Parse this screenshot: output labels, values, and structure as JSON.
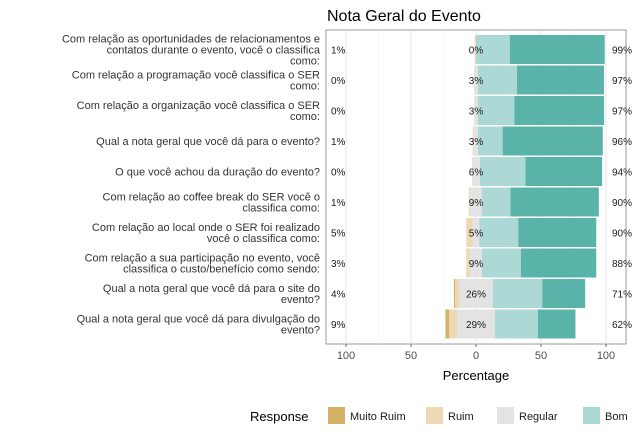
{
  "chart_data": {
    "type": "bar",
    "subtype": "diverging-stacked-likert",
    "title": "Nota Geral do Evento",
    "xlabel": "Percentage",
    "xlim": [
      -100,
      100
    ],
    "xticks": [
      -100,
      -50,
      0,
      50,
      100
    ],
    "xtick_labels": [
      "100",
      "50",
      "0",
      "50",
      "100"
    ],
    "grid": true,
    "legend": {
      "title": "Response",
      "placement": "bottom",
      "entries": [
        "Muito Ruim",
        "Ruim",
        "Regular",
        "Bom",
        "Muito Bom"
      ]
    },
    "colors": {
      "Muito Ruim": "#d6b266",
      "Ruim": "#eed9b4",
      "Regular": "#e3e3e3",
      "Bom": "#acd9d6",
      "Muito Bom": "#5ab3a8"
    },
    "categories": [
      "Com relação as oportunidades de relacionamentos e contatos durante o evento, você o classifica como:",
      "Com relação a programação você classifica o SER como:",
      "Com relação a organização você classifica o SER como:",
      "Qual a nota geral que você dá para o evento?",
      "O que você achou da duração do evento?",
      "Com relação ao coffee break do SER você o classifica como:",
      "Com relação ao local onde o SER foi realizado você o classifica como:",
      "Com relação a sua participação no evento, você classifica o custo/benefício como sendo:",
      "Qual a nota geral que você dá para o site do evento?",
      "Qual a nota geral que você dá para divulgação do evento?"
    ],
    "category_lines": [
      [
        "Com relação as oportunidades de relacionamentos e",
        "contatos durante o evento, você o classifica",
        "como:"
      ],
      [
        "Com relação a programação você classifica o SER",
        "como:"
      ],
      [
        "Com relação a organização você classifica o SER",
        "como:"
      ],
      [
        "Qual a nota geral que você dá para o evento?"
      ],
      [
        "O que você achou da duração do evento?"
      ],
      [
        "Com relação ao coffee break do SER você o",
        "classifica como:"
      ],
      [
        "Com relação ao local onde o SER foi realizado",
        "você o classifica como:"
      ],
      [
        "Com relação a sua participação no evento, você",
        "classifica o custo/benefício como sendo:"
      ],
      [
        "Qual a nota geral que você dá para o site do",
        "evento?"
      ],
      [
        "Qual a nota geral que você dá para divulgação do",
        "evento?"
      ]
    ],
    "series": [
      {
        "name": "Muito Ruim",
        "values": [
          0,
          0,
          0,
          0,
          0,
          0,
          0,
          0,
          1,
          3
        ]
      },
      {
        "name": "Ruim",
        "values": [
          1,
          0,
          0,
          1,
          0,
          1,
          5,
          3,
          3,
          6
        ]
      },
      {
        "name": "Regular",
        "values": [
          0,
          3,
          3,
          3,
          6,
          9,
          5,
          9,
          26,
          29
        ]
      },
      {
        "name": "Bom",
        "values": [
          26,
          30,
          28,
          19,
          35,
          22,
          30,
          30,
          38,
          33
        ]
      },
      {
        "name": "Muito Bom",
        "values": [
          73,
          67,
          69,
          77,
          59,
          68,
          60,
          58,
          33,
          29
        ]
      }
    ],
    "left_labels": [
      "1%",
      "0%",
      "0%",
      "1%",
      "0%",
      "1%",
      "5%",
      "3%",
      "4%",
      "9%"
    ],
    "center_labels": [
      "0%",
      "3%",
      "3%",
      "3%",
      "6%",
      "9%",
      "5%",
      "9%",
      "26%",
      "29%"
    ],
    "right_labels": [
      "99%",
      "97%",
      "97%",
      "96%",
      "94%",
      "90%",
      "90%",
      "88%",
      "71%",
      "62%"
    ]
  }
}
